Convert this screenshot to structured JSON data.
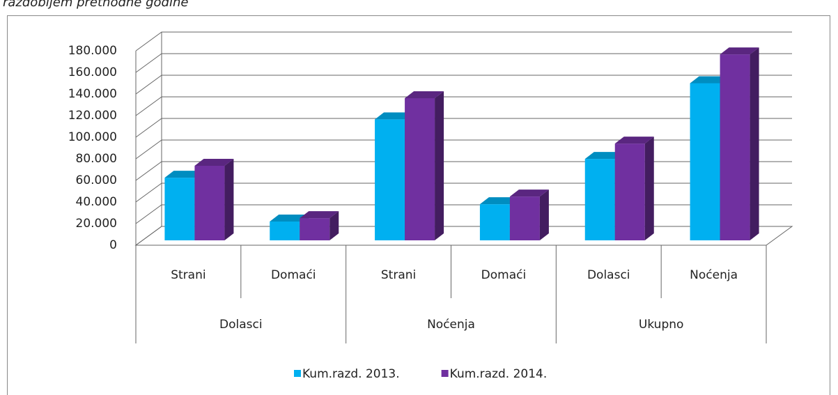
{
  "caption": "razdobljem prethodne godine",
  "chart_data": {
    "type": "bar3d",
    "groups": [
      {
        "name": "Dolasci",
        "categories": [
          "Strani",
          "Domaći"
        ]
      },
      {
        "name": "Noćenja",
        "categories": [
          "Strani",
          "Domaći"
        ]
      },
      {
        "name": "Ukupno",
        "categories": [
          "Dolasci",
          "Noćenja"
        ]
      }
    ],
    "series": [
      {
        "name": "Kum.razd. 2013.",
        "color": "#00b0f0",
        "values": [
          58000,
          17400,
          112000,
          33500,
          75400,
          145500
        ]
      },
      {
        "name": "Kum.razd. 2014.",
        "color": "#7030a0",
        "values": [
          69000,
          20600,
          131600,
          40600,
          89600,
          172200
        ]
      }
    ],
    "ylim": [
      0,
      180000
    ],
    "yticks": [
      0,
      {
        "value": 20000,
        "label": "20.000"
      },
      {
        "value": 40000,
        "label": "40.000"
      },
      {
        "value": 60000,
        "label": "60.000"
      },
      {
        "value": 80000,
        "label": "80.000"
      },
      {
        "value": 100000,
        "label": "100.000"
      },
      {
        "value": 120000,
        "label": "120.000"
      },
      {
        "value": 140000,
        "label": "140.000"
      },
      {
        "value": 160000,
        "label": "160.000"
      },
      {
        "value": 180000,
        "label": "180.000"
      }
    ],
    "grid": true,
    "legend": "bottom"
  }
}
